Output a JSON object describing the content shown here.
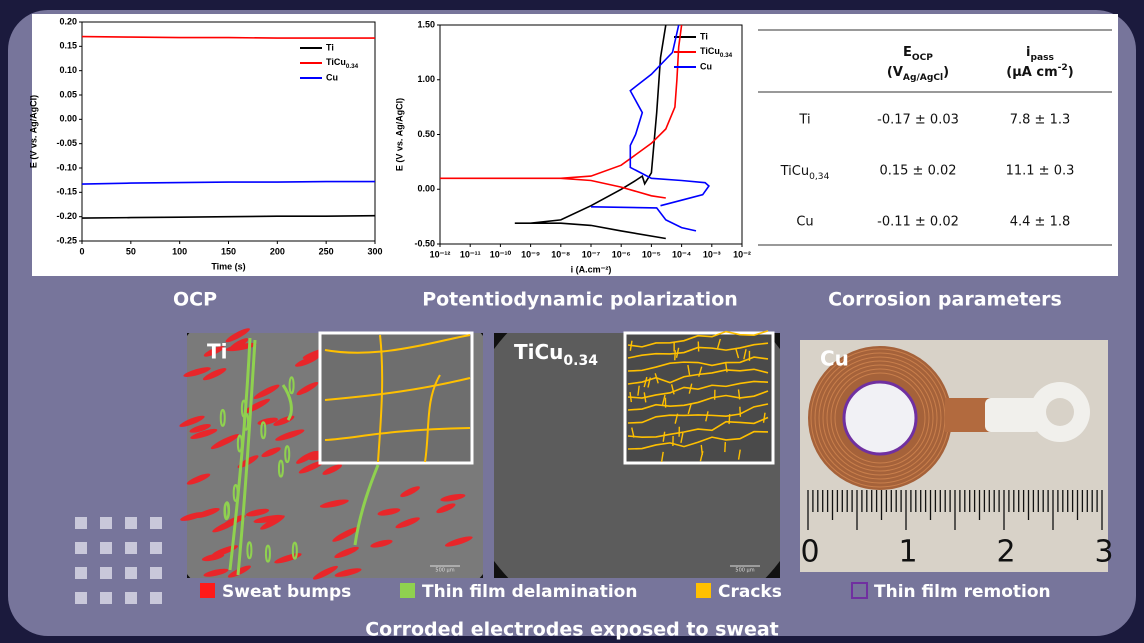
{
  "chart_data": [
    {
      "type": "line",
      "title": "OCP",
      "xlabel": "Time (s)",
      "ylabel": "E (V vs. Ag/AgCl)",
      "x": [
        0,
        50,
        100,
        150,
        200,
        250,
        300
      ],
      "xlim": [
        0,
        300
      ],
      "xticks": [
        0,
        50,
        100,
        150,
        200,
        250,
        300
      ],
      "ylim": [
        -0.25,
        0.2
      ],
      "yticks": [
        {
          "value": -0.25,
          "label": "-0.25"
        },
        {
          "value": -0.2,
          "label": "-0.20"
        },
        {
          "value": -0.15,
          "label": "-0.15"
        },
        {
          "value": -0.1,
          "label": "-0.10"
        },
        {
          "value": -0.05,
          "label": "-0.05"
        },
        {
          "value": 0,
          "label": "0.00"
        },
        {
          "value": 0.05,
          "label": "0.05"
        },
        {
          "value": 0.1,
          "label": "0.10"
        },
        {
          "value": 0.15,
          "label": "0.15"
        },
        {
          "value": 0.2,
          "label": "0.20"
        }
      ],
      "series": [
        {
          "name": "Ti",
          "color": "#000000",
          "values": [
            -0.203,
            -0.202,
            -0.201,
            -0.2,
            -0.199,
            -0.199,
            -0.198
          ]
        },
        {
          "name": "TiCu0.34",
          "color": "#ff0000",
          "values": [
            0.17,
            0.169,
            0.168,
            0.168,
            0.167,
            0.167,
            0.167
          ]
        },
        {
          "name": "Cu",
          "color": "#0000ff",
          "values": [
            -0.133,
            -0.131,
            -0.13,
            -0.129,
            -0.129,
            -0.128,
            -0.128
          ]
        }
      ]
    },
    {
      "type": "line",
      "title": "Potentiodynamic polarization",
      "xlabel": "i (A.cm⁻²)",
      "ylabel": "E (V vs. Ag/AgCl)",
      "xscale": "log",
      "xlim": [
        1e-12,
        0.01
      ],
      "xticks": [
        {
          "value": 1e-12,
          "label": "10⁻¹²"
        },
        {
          "value": 1e-11,
          "label": "10⁻¹¹"
        },
        {
          "value": 1e-10,
          "label": "10⁻¹⁰"
        },
        {
          "value": 1e-09,
          "label": "10⁻⁹"
        },
        {
          "value": 1e-08,
          "label": "10⁻⁸"
        },
        {
          "value": 1e-07,
          "label": "10⁻⁷"
        },
        {
          "value": 1e-06,
          "label": "10⁻⁶"
        },
        {
          "value": 1e-05,
          "label": "10⁻⁵"
        },
        {
          "value": 0.0001,
          "label": "10⁻⁴"
        },
        {
          "value": 0.001,
          "label": "10⁻³"
        },
        {
          "value": 0.01,
          "label": "10⁻²"
        }
      ],
      "ylim": [
        -0.5,
        1.5
      ],
      "yticks": [
        {
          "value": -0.5,
          "label": "-0.50"
        },
        {
          "value": 0,
          "label": "0.00"
        },
        {
          "value": 0.5,
          "label": "0.50"
        },
        {
          "value": 1,
          "label": "1.00"
        },
        {
          "value": 1.5,
          "label": "1.50"
        }
      ],
      "series": [
        {
          "name": "Ti",
          "color": "#000000",
          "x": [
            3e-05,
            1e-06,
            1e-07,
            1e-08,
            3e-10,
            1e-09,
            1e-08,
            1e-07,
            1e-06,
            3e-06,
            5e-06,
            6e-06,
            1e-05,
            1.2e-05,
            1.5e-05,
            2e-05,
            3e-05
          ],
          "values": [
            -0.45,
            -0.38,
            -0.33,
            -0.31,
            -0.31,
            -0.31,
            -0.28,
            -0.15,
            0.0,
            0.08,
            0.12,
            0.05,
            0.15,
            0.4,
            0.7,
            1.2,
            1.5
          ]
        },
        {
          "name": "TiCu0.34",
          "color": "#ff0000",
          "x": [
            3e-05,
            1e-05,
            1e-06,
            1e-07,
            1e-08,
            null,
            1e-12,
            1e-09,
            1e-08,
            1e-07,
            1e-06,
            1e-05,
            3e-05,
            6e-05,
            7e-05,
            8e-05,
            0.0001
          ],
          "values": [
            -0.08,
            -0.06,
            0.02,
            0.08,
            0.1,
            null,
            0.1,
            0.1,
            0.1,
            0.12,
            0.22,
            0.42,
            0.55,
            0.75,
            1.0,
            1.3,
            1.5
          ]
        },
        {
          "name": "Cu",
          "color": "#0000ff",
          "x": [
            0.0003,
            0.0001,
            3e-05,
            1.5e-05,
            1e-07,
            null,
            2e-05,
            0.0001,
            0.0005,
            0.0008,
            0.0006,
            0.0001,
            1e-05,
            2e-06,
            2e-06,
            3e-06,
            5e-06,
            2e-06,
            1e-05,
            5e-05,
            8e-05
          ],
          "values": [
            -0.38,
            -0.35,
            -0.28,
            -0.17,
            -0.16,
            null,
            -0.15,
            -0.1,
            -0.05,
            0.03,
            0.06,
            0.08,
            0.1,
            0.2,
            0.4,
            0.5,
            0.7,
            0.9,
            1.05,
            1.25,
            1.5
          ]
        }
      ]
    }
  ],
  "table": {
    "title": "Corrosion parameters",
    "headers": [
      {
        "line1": [
          {
            "t": "E"
          },
          {
            "t": "OCP",
            "sub": true
          }
        ],
        "line2": [
          {
            "t": "(V"
          },
          {
            "t": "Ag/AgCl",
            "sub": true
          },
          {
            "t": ")"
          }
        ]
      },
      {
        "line1": [
          {
            "t": "i"
          },
          {
            "t": "pass",
            "sub": true
          }
        ],
        "line2": [
          {
            "t": "(μA cm"
          },
          {
            "t": "-2",
            "sup": true
          },
          {
            "t": ")"
          }
        ]
      }
    ],
    "rows": [
      [
        "Ti",
        "-0.17 ± 0.03",
        "7.8 ± 1.3"
      ],
      [
        "TiCu0,34",
        "0.15 ± 0.02",
        "11.1 ± 0.3"
      ],
      [
        "Cu",
        "-0.11 ± 0.02",
        "4.4 ± 1.8"
      ]
    ]
  },
  "images": [
    {
      "label": "Ti",
      "scale_bar": "500 µm"
    },
    {
      "label": "TiCu0.34",
      "scale_bar": "500 µm"
    },
    {
      "label": "Cu",
      "ruler": [
        "0",
        "1",
        "2",
        "3"
      ]
    }
  ],
  "legend": [
    {
      "label": "Sweat bumps",
      "color": "#ff1a1a"
    },
    {
      "label": "Thin film delamination",
      "color": "#8fd14f"
    },
    {
      "label": "Cracks",
      "color": "#ffc000"
    },
    {
      "label": "Thin film remotion",
      "color": "#7030a0"
    }
  ],
  "footer": "Corroded electrodes exposed to sweat"
}
